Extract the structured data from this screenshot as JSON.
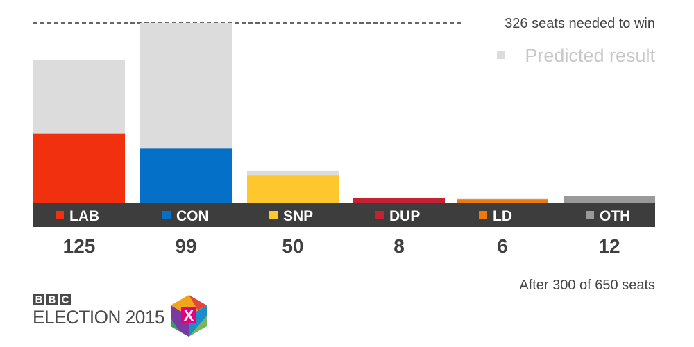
{
  "chart_data": {
    "type": "bar",
    "categories": [
      "LAB",
      "CON",
      "SNP",
      "DUP",
      "LD",
      "OTH"
    ],
    "series": [
      {
        "name": "",
        "values": [
          125,
          99,
          50,
          8,
          6,
          12
        ]
      },
      {
        "name": "Predicted result",
        "values": [
          258,
          326,
          58,
          8,
          7,
          12
        ]
      }
    ],
    "colors": [
      "#f0300f",
      "#0570c8",
      "#fec72e",
      "#c42132",
      "#f0790e",
      "#999999"
    ],
    "predicted_color": "#dcdcdc",
    "reference_line": {
      "value": 326,
      "label": "326 seats needed to win"
    },
    "ylim": [
      0,
      326
    ],
    "grid": false,
    "legend": {
      "label": "Predicted result",
      "position": "top-right"
    }
  },
  "footnote": "After 300 of 650 seats",
  "logo": {
    "bbc_letters": [
      "B",
      "B",
      "C"
    ],
    "title": "ELECTION 2015",
    "badge_letter": "X"
  }
}
